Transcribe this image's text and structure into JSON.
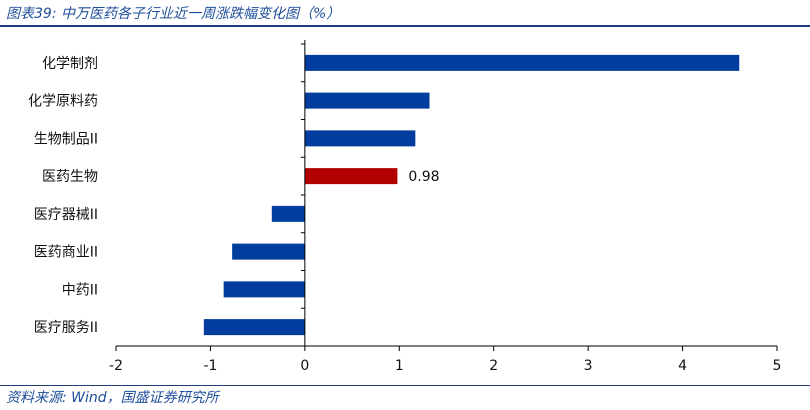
{
  "header": {
    "title": "图表39:  中万医药各子行业近一周涨跌幅变化图（%）"
  },
  "footer": {
    "source": "资料来源:  Wind，国盛证券研究所"
  },
  "colors": {
    "positive_bar": "#003d9e",
    "highlight_bar": "#b00000",
    "negative_bar": "#003d9e",
    "axis": "#000000",
    "title_text": "#1f4e9a"
  },
  "chart_data": {
    "type": "bar",
    "orientation": "horizontal",
    "categories": [
      "化学制剂",
      "化学原料药",
      "生物制品II",
      "医药生物",
      "医疗器械II",
      "医药商业II",
      "中药II",
      "医疗服务II"
    ],
    "values": [
      4.6,
      1.32,
      1.17,
      0.98,
      -0.35,
      -0.77,
      -0.86,
      -1.07
    ],
    "highlight_index": 3,
    "data_labels": [
      {
        "index": 3,
        "text": "0.98"
      }
    ],
    "xlim": [
      -2,
      5
    ],
    "xticks": [
      -2,
      -1,
      0,
      1,
      2,
      3,
      4,
      5
    ],
    "xtick_labels": [
      "-2",
      "-1",
      "0",
      "1",
      "2",
      "3",
      "4",
      "5"
    ],
    "grid": false,
    "legend": "none",
    "title": "",
    "xlabel": "",
    "ylabel": ""
  }
}
